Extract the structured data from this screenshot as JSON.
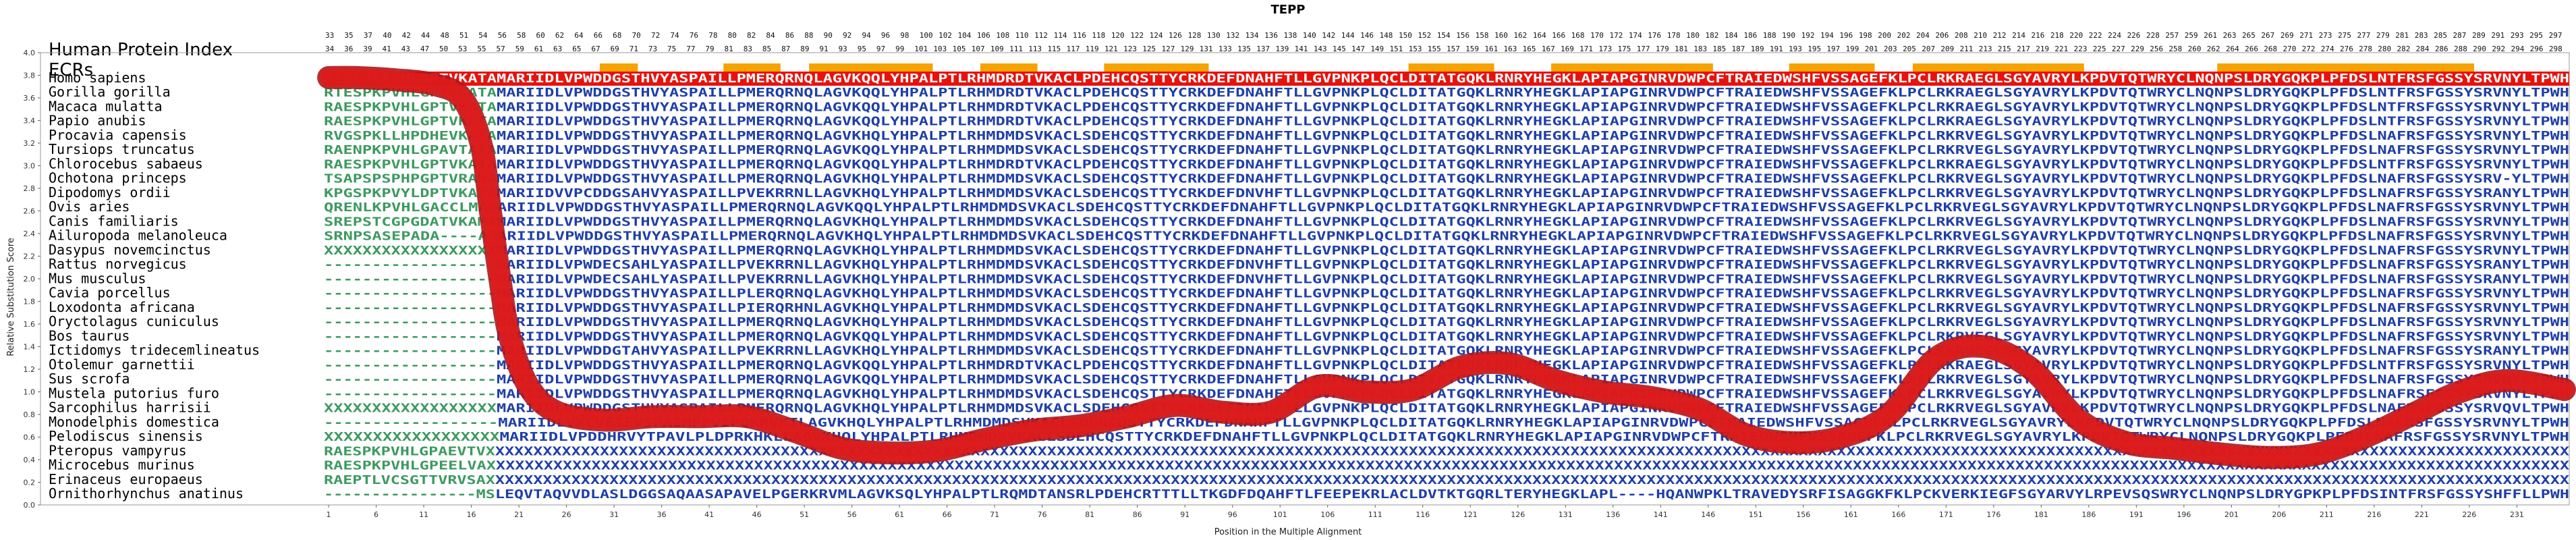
{
  "chart_data": {
    "type": "line",
    "title": "TEPP",
    "xlabel": "Position in the Multiple Alignment",
    "ylabel": "Relative Substitution Score",
    "xlim": [
      1,
      236
    ],
    "ylim": [
      0.0,
      4.0
    ],
    "xticks": [
      1,
      6,
      11,
      16,
      21,
      26,
      31,
      36,
      41,
      46,
      51,
      56,
      61,
      66,
      71,
      76,
      81,
      86,
      91,
      96,
      101,
      106,
      111,
      116,
      121,
      126,
      131,
      136,
      141,
      146,
      151,
      156,
      161,
      166,
      171,
      176,
      181,
      186,
      191,
      196,
      201,
      206,
      211,
      216,
      221,
      226,
      231
    ],
    "yticks": [
      "0.0",
      "0.2",
      "0.4",
      "0.6",
      "0.8",
      "1.0",
      "1.2",
      "1.4",
      "1.6",
      "1.8",
      "2.0",
      "2.2",
      "2.4",
      "2.6",
      "2.8",
      "3.0",
      "3.2",
      "3.4",
      "3.6",
      "3.8",
      "4.0"
    ],
    "header_rows": [
      "Human Protein Index",
      "ECRs"
    ],
    "human_positions_top": "33 35 37 40 42 44 48 51 54 56 58 60 62 64 66 68 70 72 74 76 78 80 82 84 86 88 90 92 94 96 98 100 102 104 106 108 110 112 114 116 118 120 122 124 126 128 130 132 134 136 138 140 142 144 146 148 150 152 154 156 158 160 162 164 166 168 170 172 174 176 178 180 182 184 186 188 190 192 194 196 198 200 202 204 206 208 210 212 214 216 218 220 222 224 226 228 257 259 261 263 265 267 269 271 273 275 277 279 281 283 285 287 289 291 293 295 297",
    "human_positions_bottom": "34 36 39 41 43 47 50 53 55 57 59 61 63 65 67 69 71 73 75 77 79 81 83 85 87 89 91 93 95 97 99 101 103 105 107 109 111 113 115 117 119 121 123 125 127 129 131 133 135 137 139 141 143 145 147 149 151 153 155 157 159 161 163 165 167 169 171 173 175 177 179 181 183 185 187 189 191 193 195 197 199 201 203 205 207 209 211 213 215 217 219 221 223 225 227 229 256 258 260 262 264 266 268 270 272 274 276 278 280 282 284 286 288 290 292 294 296 298",
    "ecr_regions": [
      [
        30,
        33
      ],
      [
        43,
        48
      ],
      [
        52,
        64
      ],
      [
        70,
        75
      ],
      [
        83,
        93
      ],
      [
        115,
        123
      ],
      [
        130,
        146
      ],
      [
        155,
        163
      ],
      [
        168,
        185
      ],
      [
        200,
        226
      ]
    ],
    "species": [
      {
        "name": "Homo sapiens",
        "seq": "RTESPKPVHLGPTVKATAMARIIDLVPWDDGSTHVYASPAILLPMERQRNQLAGVKQQLYHPALPTLRHMDRDTVKACLPDEHCQSTTYCRKDEFDNAHFTLLGVPNKPLQCLDITATGQKLRNRYHEGKLAPIAPGINRVDWPCFTRAIEDWSHFVSSAGEFKLPCLRKRAEGLSGYAVRYLKPDVTQTWRYCLNQNPSLDRYGQKPLPFDSLNTFRSFGSSYSRVNYLTPWH"
      },
      {
        "name": "Gorilla gorilla",
        "seq": "RTESPKPVHLGPTVKATAMARIIDLVPWDDGSTHVYASPAILLPMERQRNQLAGVKQQLYHPALPTLRHMDRDTVKACLPDEHCQSTTYCRKDEFDNAHFTLLGVPNKPLQCLDITATGQKLRNRYHEGKLAPIAPGINRVDWPCFTRAIEDWSHFVSSAGEFKLPCLRKRAEGLSGYAVRYLKPDVTQTWRYCLNQNPSLDRYGQKPLPFDSLNTFRSFGSSYSRVNYLTPWH"
      },
      {
        "name": "Macaca mulatta",
        "seq": "RAESPKPVHLGPTVKATAMARIIDLVPWDDGSTHVYASPAILLPMERQRNQLAGVKQQLYHPALPTLRHMDRDTVKACLPDEHCQSTTYCRKDEFDNAHFTLLGVPNKPLQCLDITATGQKLRNRYHEGKLAPIAPGINRVDWPCFTRAIEDWSHFVSSAGEFKLPCLRKRAEGLSGYAVRYLKPDVTQTWRYCLNQNPSLDRYGQKPLPFDSLNTFRSFGSSYSRVNYLTPWH"
      },
      {
        "name": "Papio anubis",
        "seq": "RAESPKPVHLGPTVKATAMARIIDLVPWDDGSTHVYASPAILLPMERQRNQLAGVKQQLYHPALPTLRHMDRDTVKACLPDEHCQSTTYCRKDEFDNAHFTLLGVPNKPLQCLDITATGQKLRNRYHEGKLAPIAPGINRVDWPCFTRAIEDWSHFVSSAGEFKLPCLRKRAEGLSGYAVRYLKPDVTQTWRYCLNQNPSLDRYGQKPLPFDSLNTFRSFGSSYSRVNYLTPWH"
      },
      {
        "name": "Procavia capensis",
        "seq": "RVGSPKLLHPDHEVKATAMARIIDLVPWDDGSTHVYASPAILLPMERQRNQLAGVKHQLYHPALPTLRHMDMDSVKACLSDEHCQSTTYCRKDEFDNAHFTLLGVPNKPLQCLDITATGQKLRNRYHEGKLAPIAPGINRVDWPCFTRAIEDWSHFVSSAGEFKLPCLRKRVEGLSGYAVRYLKPDVTQTWRYCLNQNPSLDRYGQKPLPFDSLNAFRSFGSSYSRVNYLTPWH"
      },
      {
        "name": "Tursiops truncatus",
        "seq": "RAENPKPVHLGPAVTATAMARIIDLVPWDDGSTHVYASPAILLPMERQRNQLAGVKQQLYHPALPTLRHMDMDSVKACLSDEHCQSTTYCRKDEFDNAHFTLLGVPNKPLQCLDITATGQKLRNRYHEGKLAPIAPGINRVDWPCFTRAIEDWSHFVSSAGEFKLPCLRKRVEGLSGYAVRYLKPDVTQTWRYCLNQNPSLDRYGQKPLPFDSLNAFRSFGSSYSRVNYLTPWH"
      },
      {
        "name": "Chlorocebus sabaeus",
        "seq": "RAESPKPVHLGPTVKATAMARIIDLVPWDDGSTHVYASPAILLPMERQRNQLAGVKQQLYHPALPTLRHMDRDTVKACLPDEHCQSTTYCRKDEFDNAHFTLLGVPNKPLQCLDITATGQKLRNRYHEGKLAPIAPGINRVDWPCFTRAIEDWSHFVSSAGEFKLPCLRKRAEGLSGYAVRYLKPDVTQTWRYCLNQNPSLDRYGQKPLPFDSLNTFRSFGSSYSRVNYLTPWH"
      },
      {
        "name": "Ochotona princeps",
        "seq": "TSAPSPSPHPGPTVRAMAMARIIDLVPWDDGSTHVYASPAILLPMERQRNQLAGVKHQLYHPALPTLRHMDMDSVKACLSDEHCQSTTYCRKDEFDNAHFTLLGVPNKPLQCLDITATGQKLRNRYHEGKLAPIAPGINRVDWPCFTRAIEDWSHFVSSAGEFKLPCLRKRVEGLSGYAVRYLKPDVTQTWRYCLNQNPSLDRYGQKPLPFDSLNAFRSFGSSYSRV-YLTPWH"
      },
      {
        "name": "Dipodomys ordii",
        "seq": "KPGSPKPVYLDPTVKATAMARIIDVVPCDDGSAHVYASPAILLPVEKRRNLLAGVKHQLYHPALPTLRHMDMDSVKACLSDEHCQSTTYCRKDEFDNVHFTLLGVPNKPLQCLDITATGQKLRNRYHEGKLAPIAPGINRVDWPCFTRAIEDWSHFVSSAGEFKLPCLRKRVEGLSGYAVRYLKPDVTQTWRYCLNQNPSLDRYGQKPLPFDSLNAFRSFGSSYSRANYLTPWH"
      },
      {
        "name": "Ovis aries",
        "seq": "QRENLKPVHLGACCLMAMARIIDLVPWDDGSTHVYASPAILLPMERQRNQLAGVKQQLYHPALPTLRHMDMDSVKACLSDEHCQSTTYCRKDEFDNAHFTLLGVPNKPLQCLDITATGQKLRNRYHEGKLAPIAPGINRVDWPCFTRAIEDWSHFVSSAGEFKLPCLRKRVEGLSGYAVRYLKPDVTQTWRYCLNQNPSLDRYGQKPLPFDSLNAFRSFGSSYSRVNYLTPWH"
      },
      {
        "name": "Canis familiaris",
        "seq": "SREPSTCGPGDATVKAMAMARIIDLVPWDDGSTHVYASPAILLPMERQRNQLAGVKHQLYHPALPTLRHMDMDSVKACLSDEHCQSTTYCRKDEFDNAHFTLLGVPNKPLQCLDITATGQKLRNRYHEGKLAPIAPGINRVDWPCFTRAIEDWSHFVSSAGEFKLPCLRKRVEGLSGYAVRYLKPDVTQTWRYCLNQNPSLDRYGQKPLPFDSLNAFRSFGSSYSRVNYLTPWH"
      },
      {
        "name": "Ailuropoda melanoleuca",
        "seq": "SRNPSASEPADA----AMARIIDLVPWDDGSTHVYASPAILLPMERQRNQLAGVKHQLYHPALPTLRHMDMDSVKACLSDEHCQSTTYCRKDEFDNAHFTLLGVPNKPLQCLDITATGQKLRNRYHEGKLAPIAPGINRVDWPCFTRAIEDWSHFVSSAGEFKLPCLRKRVEGLSGYAVRYLKPDVTQTWRYCLNQNPSLDRYGQKPLPFDSLNAFRSFGSSYSRVNYLTPWH"
      },
      {
        "name": "Dasypus novemcinctus",
        "seq": "XXXXXXXXXXXXXXXXXXMARIIDLVPWDDGSTHVYASPAILLPMERQRNQLAGVKHQLYHPALPTLRHMDMDSVKACLSDEHCQSTTYCRKDEFDNAHFTLLGVPNKPLQCLDITATGQKLRNRYHEGKLAPIAPGINRVDWPCFTRAIEDWSHFVSSAGEFKLPCLRKRVEGLSGYAVRYLKPDVTQTWRYCLNQNPSLDRYGQKPLPFDSLNAFRSFGSSYSRVNYLTPWH"
      },
      {
        "name": "Rattus norvegicus",
        "seq": "------------------MARIIDLVPWDECSAHLYASPAILLPVEKRRNLLAGVKHQLYHPALPTLRHMDMDSVKACLSDEHCQSTTYCRKDEFDNVHFTLLGVPNKPLQCLDITATGQKLRNRYHEGKLAPIAPGINRVDWPCFTRAIEDWSHFVSSAGEFKLPCLRKRVEGLSGYAVRYLKPDVTQTWRYCLNQNPSLDRYGQKPLPFDSLNAFRSFGSSYSRANYLTPWH"
      },
      {
        "name": "Mus musculus",
        "seq": "------------------MARIIDLVPWDECSAHLYASPAILLPVEKRRNLLAGVKHQLYHPALPTLRHMDMDSVKACLSDEHCQSTTYCRKDEFDNVHFTLLGVPNKPLQCLDITATGQKLRNRYHEGKLAPIAPGINRVDWPCFTRAIEDWSHFVSSAGEFKLPCLRKRVEGLSGYAVRYLKPDVTQTWRYCLNQNPSLDRYGQKPLPFDSLNAFRSFGSSYSRANYLTPWH"
      },
      {
        "name": "Cavia porcellus",
        "seq": "------------------MARIIDLVPWDDGSTHVYASPAILLPLERQRNQLAGVKHQLYHPALPTLRHMDMDSVKACLSDEHCQSTTYCRKDEFDNAHFTLLGVPNKPLQCLDITATGQKLRNRYHEGKLAPIAPGINRVDWPCFTRAIEDWSHFVSSAGEFKLPCLRKRVEGLSGYAVRYLKPDVTQTWRYCLNQNPSLDRYGQKPLPFDSLNAFRSFGSSYSRVNYLTPWH"
      },
      {
        "name": "Loxodonta africana",
        "seq": "------------------MARIIDLVPWDDGSTHVYASPAILLPIERQRHNLAGVKHQLYHPALPTLRHMDMDSVKACLSDEHCQSTTYCRKDEFDNAHFTLLGVPNKPLQCLDITATGQKLRNRYHEGKLAPIAPGINRVDWPCFTRAIEDWSHFVSSAGEFKLPCLRKRVEGLSGYAVRYLKPDVTQTWRYCLNQNPSLDRYGQKPLPFDSLNAFRSFGSSYSRVNYLTPWH"
      },
      {
        "name": "Oryctolagus cuniculus",
        "seq": "------------------MARIIDLVPWDDGSTHVYASPAILLPMERQRNQLAGVKHQLYHPALPTLRHMDMDSVKACLSDEHCQSTTYCRKDEFDNAHFTLLGVPNKPLQCLDITATGQKLRNRYHEGKLAPIAPGINRVDWPCFTRAIEDWSHFVSSAGEFKLPCLRKRVEGLSGYAVRYLKPDVTQTWRYCLNQNPSLDRYGQKPLPFDSLNAFRSFGSSYSRVNYLTPWH"
      },
      {
        "name": "Bos taurus",
        "seq": "------------------MARIIDLVPWDDGSTHVYASPAILLPMERQRNQLAGVKQQLYHPALPTLRHMDMDSVKACLSDEHCQSTTYCRKDEFDNAHFTLLGVPNKPLQCLDITATGQKLRNRYHEGKLAPIAPGINRVDWPCFTRAIEDWSHFVSSAGEFKLPCLRKRVEGLSGYAVRYLKPDVTQTWRYCLNQNPSLDRYGQKPLPFDSLNAFRSFGSSYSRVNYLTPWH"
      },
      {
        "name": "Ictidomys tridecemlineatus",
        "seq": "------------------MARIIDLVPWDDGTAHVYASPAILLPVEKRRNLLAGVKHQLYHPALPTLRHMDMDSVKACLSDEHCQSTTYCRKDEFDNAHFTLLGVPNKPLQCLDITATGQKLRNRYHEGKLAPIAPGINRVDWPCFTRAIEDWSHFVSSAGEFKLPCLRKRVEGLSGYAVRYLKPDVTQTWRYCLNQNPSLDRYGQKPLPFDSLNAFRSFGSSYSRANYLTPWH"
      },
      {
        "name": "Otolemur garnettii",
        "seq": "------------------MARIIDLVPWDDGSTHVYASPAILLPMERQRNQLAGVKQQLYHPALPTLRHMDRDTVKACLPDEHCQSTTYCRKDEFDNAHFTLLGVPNKPLQCLDITATGQKLRNRYHEGKLAPIAPGINRVDWPCFTRAIEDWSHFVSSAGEFKLPCLRKRAEGLSGYAVRYLKPDVTQTWRYCLNQNPSLDRYGQKPLPFDSLNTFRSFGSSYSRVNYLTPWH"
      },
      {
        "name": "Sus scrofa",
        "seq": "------------------MARIIDLVPWDDGSTHVYASPAILLPMERQRNQLAGVKQQLYHPALPTLRHMDMDSVKACLSDEHCQSTTYCRKDEFDNAHFTLLGVPNKPLQCLDITATGQKLRNRYHEGKLAPIAPGINRVDWPCFTRAIEDWSHFVSSAGEFKLPCLRKRVEGLSGYAVRYLKPDVTQTWRYCLNQNPSLDRYGQKPLPFDSLNAFRSFGSSYSRVNYLTPWH"
      },
      {
        "name": "Mustela putorius furo",
        "seq": "------------------MARIIDLVPWDDGSTHVYASPAILLPMERQRNQLAGVKHQLYHPALPTLRHMDMDSVKACLSDEHCQSTTYCRKDEFDNAHFTLLGVPNKPLQCLDITATGQKLRNRYHEGKLAPIAPGINRVDWPCFTRAIEDWSHFVSSAGEFKLPCLRKRVEGLSGYAVRYLKPDVTQTWRYCLNQNPSLDRYGQKPLPFDSLNAFRSFGSSYSRVNYLTPWH"
      },
      {
        "name": "Sarcophilus harrisii",
        "seq": "XXXXXXXXXXXXXXXXXXMARIIDLVPWDDGSTHVYASPAILLPMERQRNQLAGVKHQLYHPALPTLRHMDMDSVKACLSDEHCQSTTYCRKDEFDNAHFTLLGVPNKPLQCLDITATGQKLRNRYHEGKLAPIAPGINRVDWPCFTRAIEDWSHFVSSAGEFKLPCLRKRVEGLSGYAVRYLKPDVTQTWRYCLNQNPSLDRYGQKPLPFDSLNAFRSFGSSYSRVQVLTPWH"
      },
      {
        "name": "Monodelphis domestica",
        "seq": "------------------MARIIDLVKCVETFVSPAIMFPVIPQKRVKTLAGVKHQLYHPALPTLRHMDMDSVKACLSDEHCQSTTYCRKDEFDNAHFTLLGVPNKPLQCLDITATGQKLRNRYHEGKLAPIAPGINRVDWPCFTRAIEDWSHFVSSAGEFKLPCLRKRVEGLSGYAVRYLKPDVTQTWRYCLNQNPSLDRYGQKPLPFDSLNAFRSFGSSYSRVNYLTPWH"
      },
      {
        "name": "Pelodiscus sinensis",
        "seq": "XXXXXXXXXXXXXXXXXXMARIIDLVPDDHRVYTPAVLPLDPRKHKLLAGVKHQLYHPALPTLRHMDMDSVKACLSDEHCQSTTYCRKDEFDNAHFTLLGVPNKPLQCLDITATGQKLRNRYHEGKLAPIAPGINRVDWPCFTRAIEDWSHFVSSAGEFKLPCLRKRVEGLSGYAVRYLKPDVTQTWRYCLNQNPSLDRYGQKPLPFDSLNAFRSFGSSYSRVNYLTPWH"
      },
      {
        "name": "Pteropus vampyrus",
        "seq": "RAESPKPVHLGPAEVTVXXXXXXXXXXXXXXXXXXXXXXXXXXXXXXXXXXXXXXXXXXXXXXXXXXXXXXXXXXXXXXXXXXXXXXXXXXXXXXXXXXXXXXXXXXXXXXXXXXXXXXXXXXXXXXXXXXXXXXXXXXXXXXXXXXXXXXXXXXXXXXXXXXXXXXXXXXXXXXXXXXXXXXXXXXXXXXXXXXXXXXXXXXXXXXXXXXXXXXXXXXXXXXXXXXXXXXXXXXX"
      },
      {
        "name": "Microcebus murinus",
        "seq": "RAESPKPVHLGPEELVAXXXXXXXXXXXXXXXXXXXXXXXXXXXXXXXXXXXXXXXXXXXXXXXXXXXXXXXXXXXXXXXXXXXXXXXXXXXXXXXXXXXXXXXXXXXXXXXXXXXXXXXXXXXXXXXXXXXXXXXXXXXXXXXXXXXXXXXXXXXXXXXXXXXXXXXXXXXXXXXXXXXXXXXXXXXXXXXXXXXXXXXXXXXXXXXXXXXXXXXXXXXXXXXXXXXXXXXXXX"
      },
      {
        "name": "Erinaceus europaeus",
        "seq": "RAEPTLVCSGTTVRVSAXXXXXXXXXXXXXXXXXXXXXXXXXXXXXXXXXXXXXXXXXXXXXXXXXXXXXXXXXXXXXXXXXXXXXXXXXXXXXXXXXXXXXXXXXXXXXXXXXXXXXXXXXXXXXXXXXXXXXXXXXXXXXXXXXXXXXXXXXXXXXXXXXXXXXXXXXXXXXXXXXXXXXXXXXXXXXXXXXXXXXXXXXXXXXXXXXXXXXXXXXXXXXXXXXXXXXXXXXXX"
      },
      {
        "name": "Ornithorhynchus anatinus",
        "seq": "----------------MSLEQVTAQVVDLASLDGGSAQAASAPAVELPGERKRVMLAGVKSQLYHPALPTLRQMDTANSRLPDEHCRTTTLLTKGDFDQAHFTLFEEPEKRLACLDVTKTGQRLTERYHEGKLAPL----HQANWPKLTRAVEDYSRFISAGGKFKLPCKVERKIEGFSGYARVYLRPEVSQSWRYCLNQNPSLDRYGPKPLPFDSINTFRSFGSSYSHFFLLPWH"
      }
    ],
    "curve": {
      "x": [
        1,
        4,
        8,
        12,
        15,
        17,
        18,
        19,
        20,
        22,
        25,
        30,
        35,
        40,
        45,
        50,
        55,
        60,
        65,
        70,
        75,
        80,
        85,
        90,
        95,
        100,
        105,
        110,
        115,
        120,
        125,
        130,
        135,
        140,
        145,
        150,
        155,
        160,
        165,
        170,
        175,
        180,
        185,
        190,
        195,
        200,
        205,
        210,
        215,
        220,
        225,
        230,
        236
      ],
      "y": [
        3.78,
        3.78,
        3.76,
        3.72,
        3.6,
        3.2,
        2.6,
        2.0,
        1.5,
        1.05,
        0.82,
        0.75,
        0.78,
        0.78,
        0.78,
        0.65,
        0.5,
        0.46,
        0.48,
        0.58,
        0.66,
        0.7,
        0.78,
        0.88,
        0.82,
        0.82,
        1.05,
        1.0,
        1.02,
        1.22,
        1.25,
        1.1,
        1.0,
        0.95,
        0.85,
        0.62,
        0.55,
        0.6,
        0.8,
        1.3,
        1.4,
        1.2,
        0.75,
        0.55,
        0.5,
        0.45,
        0.42,
        0.45,
        0.6,
        0.8,
        1.0,
        1.1,
        1.02
      ]
    }
  }
}
